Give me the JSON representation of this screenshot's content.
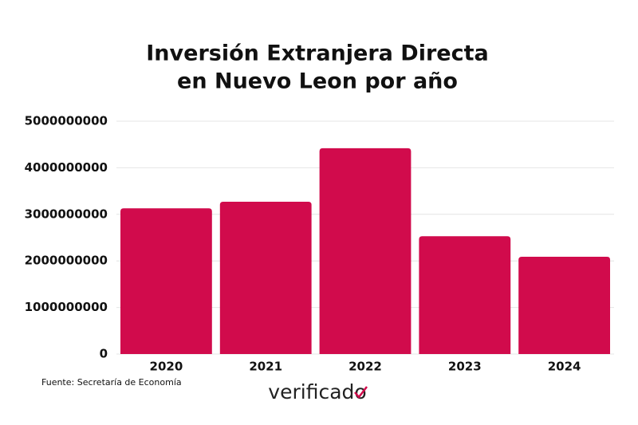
{
  "chart_data": {
    "type": "bar",
    "title": [
      "Inversión Extranjera Directa",
      "en Nuevo Leon por año"
    ],
    "categories": [
      "2020",
      "2021",
      "2022",
      "2023",
      "2024"
    ],
    "values": [
      3130000000,
      3270000000,
      4420000000,
      2530000000,
      2090000000
    ],
    "color": "#d10b4c",
    "ylim": [
      0,
      5000000000
    ],
    "yticks": [
      0,
      1000000000,
      2000000000,
      3000000000,
      4000000000,
      5000000000
    ],
    "grid": true,
    "source": "Fuente: Secretaría de Economía",
    "logo": "verificado"
  }
}
